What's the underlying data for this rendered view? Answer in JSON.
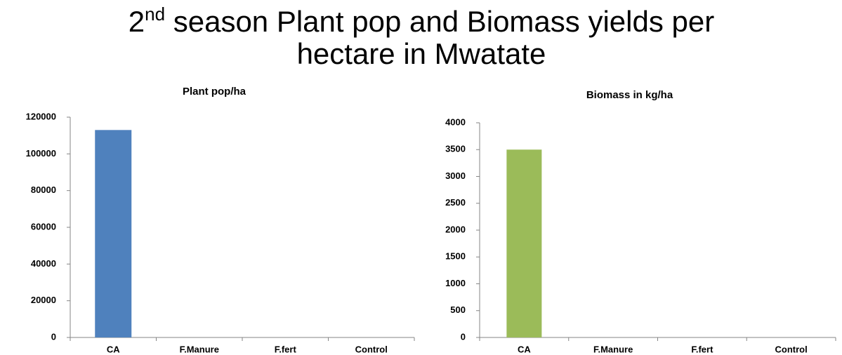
{
  "title": {
    "number": "2",
    "superscript": "nd",
    "text": " season Plant pop and Biomass yields per hectare in Mwatate"
  },
  "chart_data": [
    {
      "type": "bar",
      "title": "Plant pop/ha",
      "categories": [
        "CA",
        "F.Manure",
        "F.fert",
        "Control"
      ],
      "values": [
        113000,
        0,
        0,
        0
      ],
      "color": "#4f81bd",
      "ylim": [
        0,
        120000
      ],
      "yticks": [
        0,
        20000,
        40000,
        60000,
        80000,
        100000,
        120000
      ]
    },
    {
      "type": "bar",
      "title": "Biomass in kg/ha",
      "categories": [
        "CA",
        "F.Manure",
        "F.fert",
        "Control"
      ],
      "values": [
        3500,
        0,
        0,
        0
      ],
      "color": "#9bbb59",
      "ylim": [
        0,
        4000
      ],
      "yticks": [
        0,
        500,
        1000,
        1500,
        2000,
        2500,
        3000,
        3500,
        4000
      ]
    }
  ]
}
